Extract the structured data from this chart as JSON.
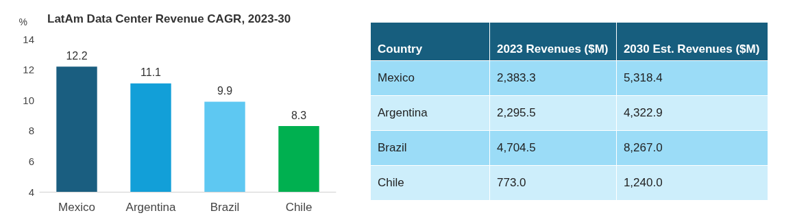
{
  "chart_data": [
    {
      "type": "bar",
      "title": "LatAm Data Center Revenue CAGR, 2023-30",
      "ylabel": "%",
      "categories": [
        "Mexico",
        "Argentina",
        "Brazil",
        "Chile"
      ],
      "values": [
        12.2,
        11.1,
        9.9,
        8.3
      ],
      "colors": [
        "#1a5e80",
        "#129fd8",
        "#5ec8f2",
        "#00b050"
      ],
      "ylim": [
        4,
        14
      ],
      "yticks": [
        4,
        6,
        8,
        10,
        12,
        14
      ],
      "grid": false,
      "data_labels": true
    },
    {
      "type": "other",
      "xlabel": "Country",
      "categories": [
        "Mexico",
        "Argentina",
        "Brazil",
        "Chile"
      ],
      "series": [
        {
          "name": "2023 Revenues ($M)",
          "colors": [
            "#9bdcf7",
            "#cdeefb",
            "#9bdcf7",
            "#cdeefb"
          ],
          "values": [
            2383.3,
            2295.5,
            4704.5,
            773.0
          ],
          "value_labels": [
            "2,383.3",
            "2,295.5",
            "4,704.5",
            "773.0"
          ]
        },
        {
          "name": "2030 Est. Revenues ($M)",
          "colors": [
            "#9bdcf7",
            "#cdeefb",
            "#9bdcf7",
            "#cdeefb"
          ],
          "values": [
            5318.4,
            4322.9,
            8267.0,
            1240.0
          ],
          "value_labels": [
            "5,318.4",
            "4,322.9",
            "8,267.0",
            "1,240.0"
          ]
        }
      ]
    }
  ]
}
